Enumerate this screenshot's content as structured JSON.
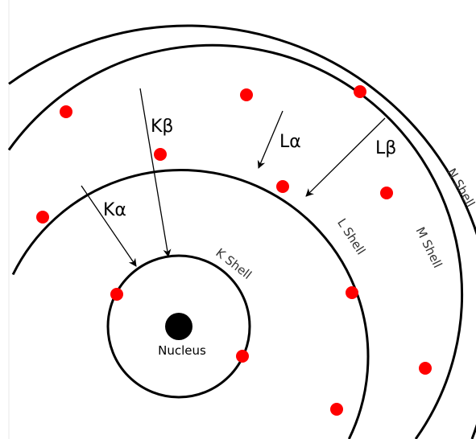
{
  "colors": {
    "electron": "#ff0000",
    "nucleus": "#000000",
    "shell": "#000000"
  },
  "labels": {
    "nucleus": "Nucleus",
    "k_shell": "K Shell",
    "l_shell": "L Shell",
    "m_shell": "M Shell",
    "n_shell": "N Shell"
  },
  "transitions": {
    "k_alpha": "Kα",
    "k_beta": "Kβ",
    "l_alpha": "Lα",
    "l_beta": "Lβ"
  }
}
